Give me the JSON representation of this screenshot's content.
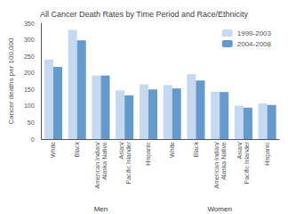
{
  "chart_data": {
    "type": "bar",
    "title": "All Cancer Death Rates by Time Period and Race/Ethnicity",
    "ylabel": "Cancer deaths per 100,000",
    "categories": [
      "White",
      "Black",
      "American Indian/\nAlaska Native",
      "Asian/\nPacific Islander",
      "Hispanic",
      "White",
      "Black",
      "American Indian/\nAlaska Native",
      "Asian/\nPacific Islander",
      "Hispanic"
    ],
    "group_labels": [
      "Men",
      "Women"
    ],
    "series": [
      {
        "name": "1999-2003",
        "color": "#c5d9f1",
        "values": [
          240,
          330,
          192,
          147,
          165,
          163,
          196,
          143,
          101,
          108
        ]
      },
      {
        "name": "2004-2008",
        "color": "#6699cc",
        "values": [
          218,
          298,
          192,
          132,
          150,
          153,
          177,
          142,
          95,
          103
        ]
      }
    ],
    "ylim": [
      0,
      350
    ],
    "yticks": [
      0,
      50,
      100,
      150,
      200,
      250,
      300,
      350
    ],
    "grid": false,
    "legend": "upper right"
  }
}
